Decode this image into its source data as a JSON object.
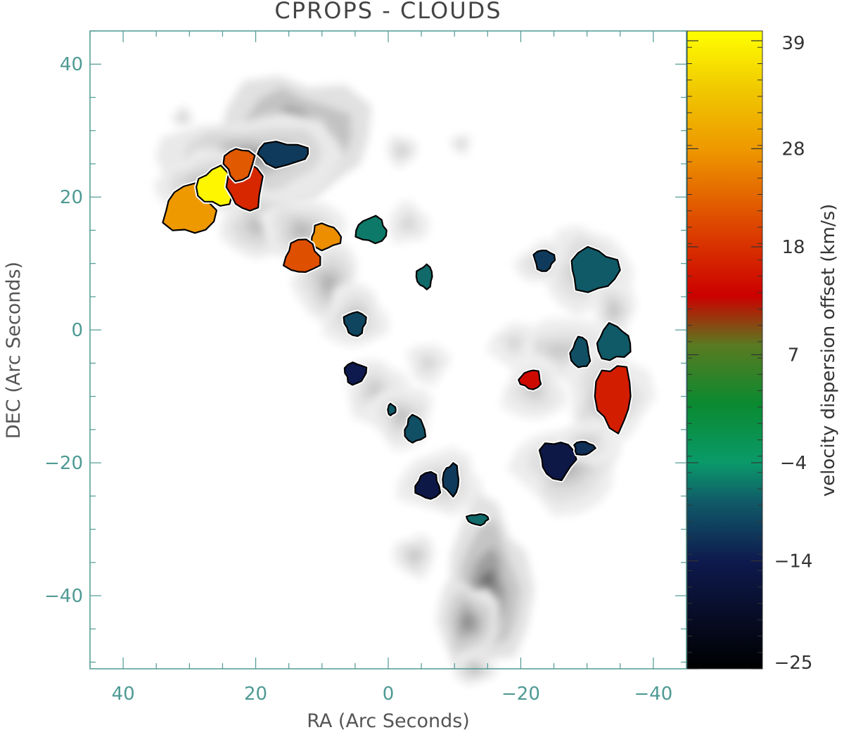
{
  "chart_data": {
    "type": "scatter",
    "title": "CPROPS - CLOUDS",
    "xlabel": "RA (Arc Seconds)",
    "ylabel": "DEC (Arc Seconds)",
    "xlim": [
      45,
      -45
    ],
    "ylim": [
      -51,
      45
    ],
    "x_ticks": [
      40,
      20,
      0,
      -20,
      -40
    ],
    "x_tick_labels": [
      "40",
      "20",
      "0",
      "−20",
      "−40"
    ],
    "y_ticks": [
      40,
      20,
      0,
      -20,
      -40
    ],
    "y_tick_labels": [
      "40",
      "20",
      "0",
      "−20",
      "−40"
    ],
    "axis_color": "#4f9a94",
    "colorbar": {
      "label": "velocity dispersion offset (km/s)",
      "range": [
        -25,
        40
      ],
      "ticks": [
        39,
        28,
        18,
        7,
        -4,
        -14,
        -25
      ],
      "tick_labels": [
        "39",
        "28",
        "18",
        "7",
        "−4",
        "−14",
        "−25"
      ],
      "stops": [
        {
          "v": -25,
          "color": "#000000"
        },
        {
          "v": -14,
          "color": "#0e1a4e"
        },
        {
          "v": -8,
          "color": "#105a68"
        },
        {
          "v": -4,
          "color": "#0a9a6a"
        },
        {
          "v": 2,
          "color": "#0a8a30"
        },
        {
          "v": 8,
          "color": "#5a7a20"
        },
        {
          "v": 13,
          "color": "#cc0000"
        },
        {
          "v": 20,
          "color": "#dd4400"
        },
        {
          "v": 28,
          "color": "#ee9900"
        },
        {
          "v": 34,
          "color": "#f0c800"
        },
        {
          "v": 40,
          "color": "#ffff00"
        }
      ]
    },
    "background_emission": [
      {
        "x": 14,
        "y": 29,
        "rx": 7,
        "ry": 6,
        "level": 0.85
      },
      {
        "x": 20,
        "y": 26,
        "rx": 9,
        "ry": 4,
        "level": 0.5
      },
      {
        "x": 27,
        "y": 22,
        "rx": 5,
        "ry": 3,
        "level": 0.4
      },
      {
        "x": 18,
        "y": 16,
        "rx": 5,
        "ry": 3,
        "level": 0.45
      },
      {
        "x": 13,
        "y": 15,
        "rx": 4,
        "ry": 3,
        "level": 0.35
      },
      {
        "x": 9,
        "y": 7,
        "rx": 3,
        "ry": 4,
        "level": 0.4
      },
      {
        "x": 5,
        "y": 2,
        "rx": 3,
        "ry": 3,
        "level": 0.3
      },
      {
        "x": 2,
        "y": -9,
        "rx": 3,
        "ry": 3,
        "level": 0.25
      },
      {
        "x": -2,
        "y": -13,
        "rx": 3,
        "ry": 3,
        "level": 0.3
      },
      {
        "x": -8,
        "y": -23,
        "rx": 4,
        "ry": 3,
        "level": 0.3
      },
      {
        "x": -15,
        "y": -39,
        "rx": 4,
        "ry": 8,
        "level": 0.8
      },
      {
        "x": -12,
        "y": -44,
        "rx": 3,
        "ry": 4,
        "level": 0.6
      },
      {
        "x": -4,
        "y": -34,
        "rx": 2,
        "ry": 2,
        "level": 0.3
      },
      {
        "x": -24,
        "y": 10,
        "rx": 3,
        "ry": 2,
        "level": 0.3
      },
      {
        "x": -30,
        "y": 9,
        "rx": 4,
        "ry": 4,
        "level": 0.35
      },
      {
        "x": -34,
        "y": 3,
        "rx": 2,
        "ry": 3,
        "level": 0.3
      },
      {
        "x": -26,
        "y": -3,
        "rx": 6,
        "ry": 3,
        "level": 0.25
      },
      {
        "x": -22,
        "y": -9,
        "rx": 3,
        "ry": 3,
        "level": 0.25
      },
      {
        "x": -33,
        "y": -10,
        "rx": 4,
        "ry": 5,
        "level": 0.35
      },
      {
        "x": -27,
        "y": -21,
        "rx": 5,
        "ry": 4,
        "level": 0.35
      },
      {
        "x": -30,
        "y": -17,
        "rx": 3,
        "ry": 2,
        "level": 0.25
      },
      {
        "x": -3,
        "y": 16,
        "rx": 2,
        "ry": 2,
        "level": 0.2
      },
      {
        "x": -2,
        "y": 27,
        "rx": 1.5,
        "ry": 1.5,
        "level": 0.25
      },
      {
        "x": -11,
        "y": 28,
        "rx": 1,
        "ry": 1,
        "level": 0.2
      },
      {
        "x": 31,
        "y": 32,
        "rx": 1,
        "ry": 1,
        "level": 0.25
      },
      {
        "x": -13,
        "y": -51,
        "rx": 2,
        "ry": 1.5,
        "level": 0.35
      },
      {
        "x": -6,
        "y": -5,
        "rx": 2,
        "ry": 2,
        "level": 0.2
      },
      {
        "x": -19,
        "y": -2,
        "rx": 2,
        "ry": 2,
        "level": 0.2
      }
    ],
    "clouds": [
      {
        "x": 30,
        "y": 18,
        "rx": 3.8,
        "ry": 3.6,
        "value": 28
      },
      {
        "x": 26,
        "y": 21.5,
        "rx": 2.8,
        "ry": 2.8,
        "value": 39
      },
      {
        "x": 21.5,
        "y": 21.5,
        "rx": 2.6,
        "ry": 3.4,
        "value": 17
      },
      {
        "x": 22.5,
        "y": 25,
        "rx": 2.2,
        "ry": 2.4,
        "value": 22
      },
      {
        "x": 16,
        "y": 26.5,
        "rx": 3.8,
        "ry": 1.8,
        "value": -11
      },
      {
        "x": 9.5,
        "y": 14,
        "rx": 2.2,
        "ry": 1.9,
        "value": 27
      },
      {
        "x": 13,
        "y": 11,
        "rx": 2.6,
        "ry": 2.5,
        "value": 21
      },
      {
        "x": 2.5,
        "y": 15,
        "rx": 2.3,
        "ry": 1.9,
        "value": -6
      },
      {
        "x": -5.5,
        "y": 8,
        "rx": 1.2,
        "ry": 1.7,
        "value": -7
      },
      {
        "x": 5,
        "y": 1,
        "rx": 1.6,
        "ry": 1.8,
        "value": -10
      },
      {
        "x": 5,
        "y": -6.5,
        "rx": 1.6,
        "ry": 1.6,
        "value": -14
      },
      {
        "x": -0.5,
        "y": -12,
        "rx": 0.6,
        "ry": 0.8,
        "value": -8
      },
      {
        "x": -4,
        "y": -15,
        "rx": 1.5,
        "ry": 2.0,
        "value": -9
      },
      {
        "x": -6,
        "y": -23.5,
        "rx": 1.8,
        "ry": 2.0,
        "value": -15
      },
      {
        "x": -9.5,
        "y": -22.5,
        "rx": 1.2,
        "ry": 2.3,
        "value": -11
      },
      {
        "x": -13.5,
        "y": -28.5,
        "rx": 1.6,
        "ry": 0.8,
        "value": -7
      },
      {
        "x": -23.5,
        "y": 10.5,
        "rx": 1.5,
        "ry": 1.6,
        "value": -11
      },
      {
        "x": -31,
        "y": 9,
        "rx": 3.6,
        "ry": 3.2,
        "value": -8
      },
      {
        "x": -34,
        "y": -2,
        "rx": 2.5,
        "ry": 2.6,
        "value": -8
      },
      {
        "x": -29,
        "y": -3.5,
        "rx": 1.4,
        "ry": 2.3,
        "value": -9
      },
      {
        "x": -21.5,
        "y": -7.5,
        "rx": 1.6,
        "ry": 1.4,
        "value": 14
      },
      {
        "x": -34,
        "y": -10,
        "rx": 2.7,
        "ry": 4.8,
        "value": 16
      },
      {
        "x": -25.5,
        "y": -19.5,
        "rx": 2.6,
        "ry": 2.8,
        "value": -15
      },
      {
        "x": -29.5,
        "y": -17.8,
        "rx": 1.5,
        "ry": 1.0,
        "value": -12
      }
    ]
  }
}
